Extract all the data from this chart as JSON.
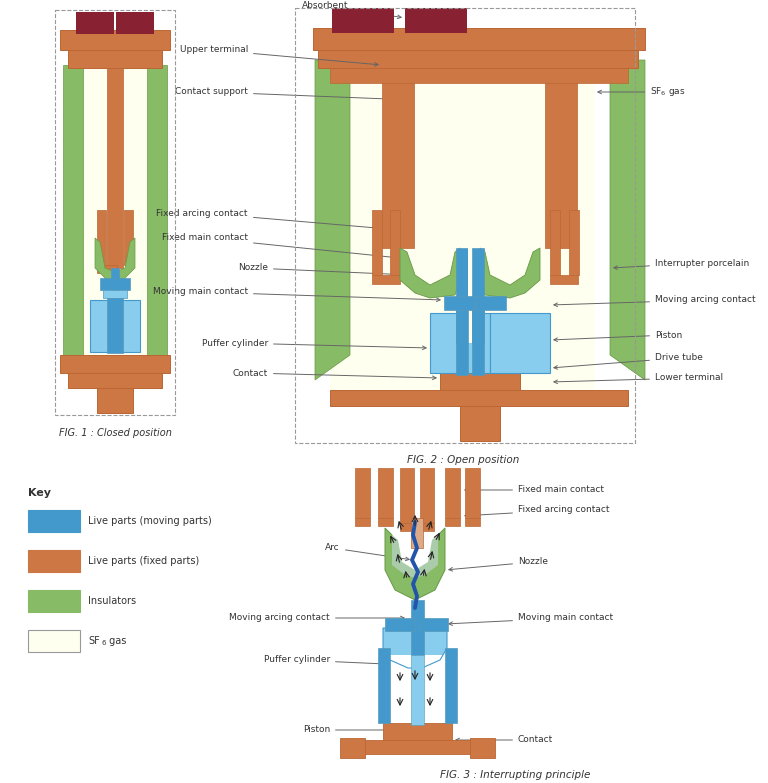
{
  "colors": {
    "blue_live": "#4499CC",
    "blue_live_light": "#88CCEE",
    "blue_mid": "#5599BB",
    "orange_fixed": "#CC7744",
    "orange_fixed_light": "#DDAA88",
    "orange_dark": "#BB6633",
    "green_ins": "#88BB66",
    "green_ins_light": "#AACCAA",
    "green_ins_dark": "#669944",
    "yellow_sf6": "#FFFFF0",
    "yellow_sf6_2": "#FAFAD0",
    "dark_red": "#882233",
    "white": "#FFFFFF",
    "black": "#000000",
    "gray_ann": "#555555",
    "gray_border": "#999999",
    "arc_color": "#2255AA",
    "bg": "#FFFFFF"
  },
  "fig1_caption": "FIG. 1 : Closed position",
  "fig2_caption": "FIG. 2 : Open position",
  "fig3_caption": "FIG. 3 : Interrupting principle",
  "key_title": "Key",
  "key_items": [
    {
      "color": "#4499CC",
      "label": "Live parts (moving parts)"
    },
    {
      "color": "#CC7744",
      "label": "Live parts (fixed parts)"
    },
    {
      "color": "#88BB66",
      "label": "Insulators"
    },
    {
      "color": "#FFFFF0",
      "label": "SF₆ gas",
      "outline": true
    }
  ]
}
